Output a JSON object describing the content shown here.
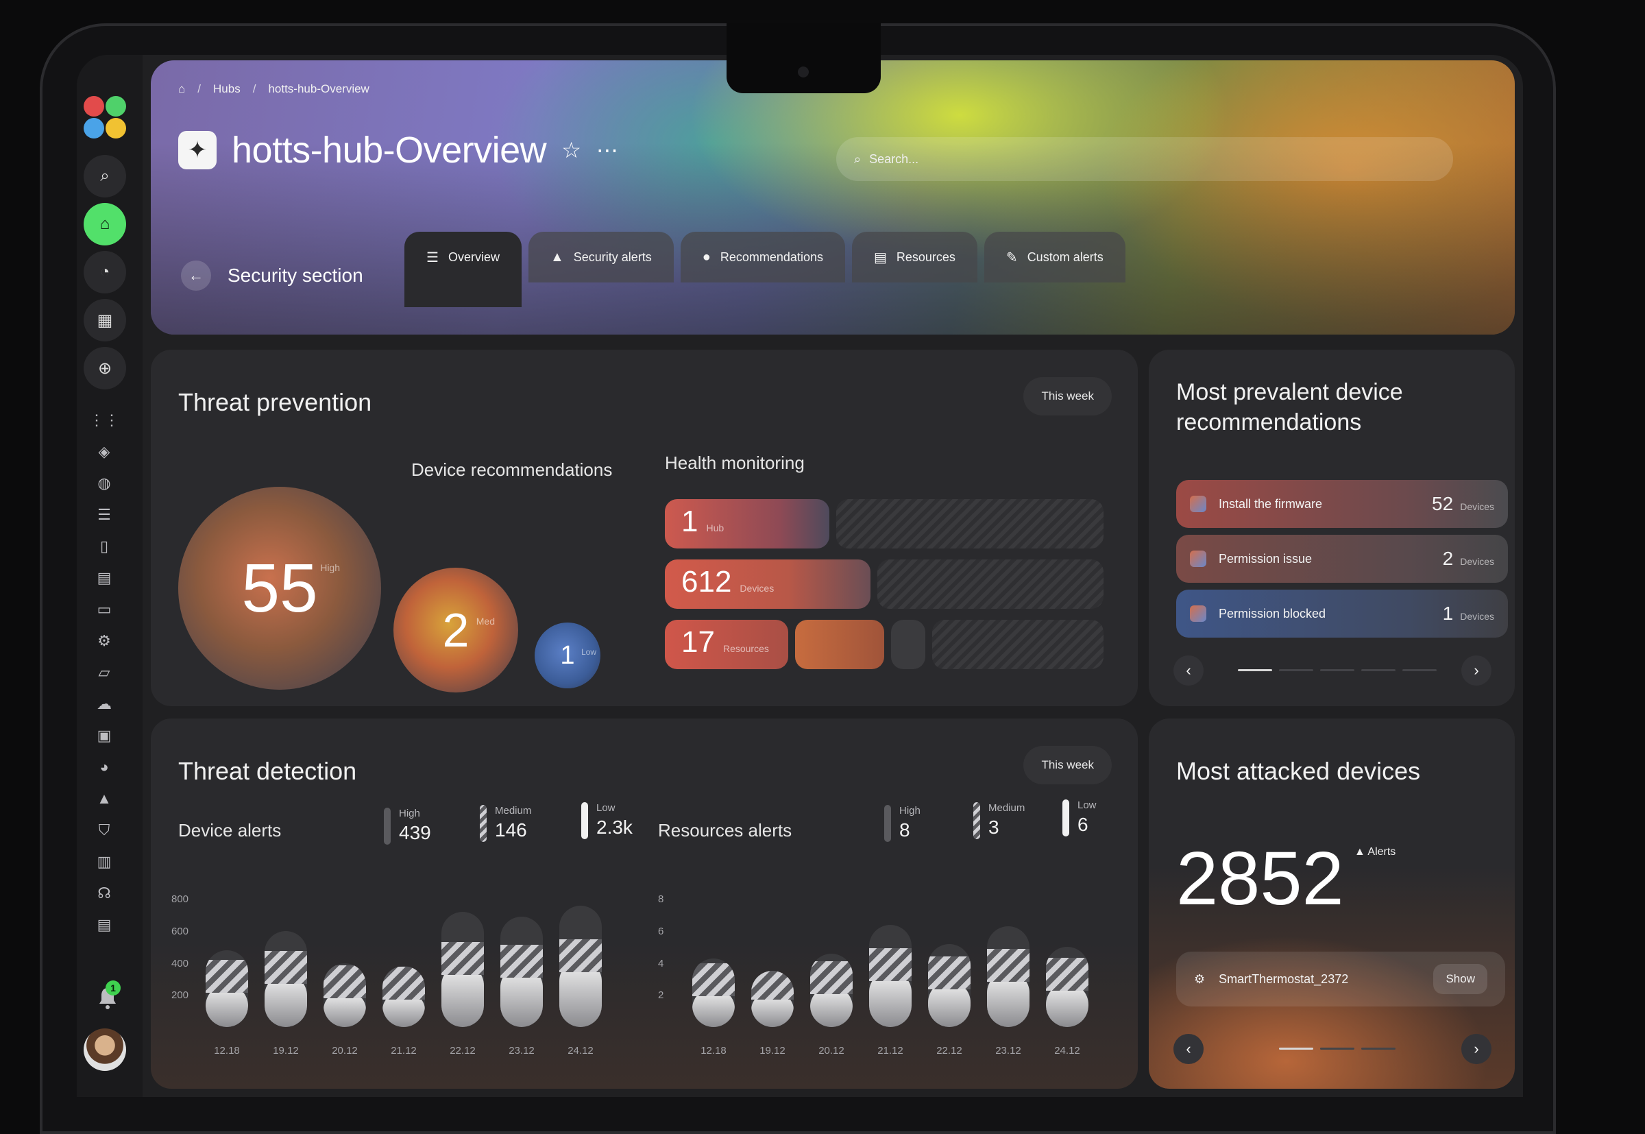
{
  "breadcrumb": {
    "home_icon": "home-icon",
    "sep": "/",
    "hubs": "Hubs",
    "current": "hotts-hub-Overview"
  },
  "header": {
    "title": "hotts-hub-Overview",
    "search_placeholder": "Search..."
  },
  "section": {
    "label": "Security section"
  },
  "tabs": [
    {
      "label": "Overview",
      "icon": "list-icon"
    },
    {
      "label": "Security alerts",
      "icon": "warning-icon"
    },
    {
      "label": "Recommendations",
      "icon": "bulb-icon"
    },
    {
      "label": "Resources",
      "icon": "stack-icon"
    },
    {
      "label": "Custom alerts",
      "icon": "edit-icon"
    }
  ],
  "threat_prevention": {
    "title": "Threat prevention",
    "period": "This week",
    "device_recommendations": {
      "title": "Device recommendations",
      "high": {
        "value": "55",
        "label": "High"
      },
      "med": {
        "value": "2",
        "label": "Med"
      },
      "low": {
        "value": "1",
        "label": "Low"
      }
    },
    "health_monitoring": {
      "title": "Health monitoring",
      "rows": [
        {
          "value": "1",
          "unit": "Hub"
        },
        {
          "value": "612",
          "unit": "Devices"
        },
        {
          "value": "17",
          "unit": "Resources"
        }
      ]
    }
  },
  "prevalent": {
    "title_line1": "Most prevalent device",
    "title_line2": "recommendations",
    "items": [
      {
        "label": "Install the firmware",
        "count": "52",
        "unit": "Devices"
      },
      {
        "label": "Permission issue",
        "count": "2",
        "unit": "Devices"
      },
      {
        "label": "Permission blocked",
        "count": "1",
        "unit": "Devices"
      }
    ]
  },
  "threat_detection": {
    "title": "Threat detection",
    "period": "This week",
    "device_alerts": {
      "title": "Device alerts",
      "high": {
        "label": "High",
        "value": "439"
      },
      "medium": {
        "label": "Medium",
        "value": "146"
      },
      "low": {
        "label": "Low",
        "value": "2.3k"
      }
    },
    "resources_alerts": {
      "title": "Resources alerts",
      "high": {
        "label": "High",
        "value": "8"
      },
      "medium": {
        "label": "Medium",
        "value": "3"
      },
      "low": {
        "label": "Low",
        "value": "6"
      }
    }
  },
  "most_attacked": {
    "title": "Most attacked devices",
    "count": "2852",
    "count_label": "Alerts",
    "device": "SmartThermostat_2372",
    "show": "Show"
  },
  "chart_data": [
    {
      "type": "bar",
      "name": "Device alerts",
      "categories": [
        "12.18",
        "19.12",
        "20.12",
        "21.12",
        "22.12",
        "23.12",
        "24.12"
      ],
      "values": [
        480,
        600,
        400,
        380,
        720,
        690,
        760
      ],
      "ylim": [
        0,
        900
      ],
      "yticks": [
        "800",
        "600",
        "400",
        "200"
      ],
      "grid": false
    },
    {
      "type": "bar",
      "name": "Resources alerts",
      "categories": [
        "12.18",
        "19.12",
        "20.12",
        "21.12",
        "22.12",
        "23.12",
        "24.12"
      ],
      "values": [
        4.3,
        3.5,
        4.6,
        6.4,
        5.2,
        6.3,
        5.0
      ],
      "ylim": [
        0,
        9
      ],
      "yticks": [
        "8",
        "6",
        "4",
        "2"
      ],
      "grid": false
    }
  ]
}
